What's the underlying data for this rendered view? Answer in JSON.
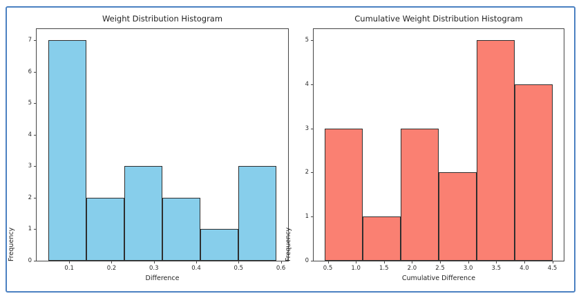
{
  "figure": {
    "background_color": "#ffffff",
    "border_color": "#4a80c1",
    "spine_color": "#444444",
    "text_color": "#1f1f1f"
  },
  "chart_data": [
    {
      "type": "bar",
      "subtype": "histogram",
      "title": "Weight Distribution Histogram",
      "xlabel": "Difference",
      "ylabel": "Frequency",
      "bar_color": "#87ceeb",
      "bar_edge_color": "#2e2e2e",
      "bin_edges": [
        0.05,
        0.14,
        0.23,
        0.32,
        0.41,
        0.5,
        0.59
      ],
      "values": [
        7,
        2,
        3,
        2,
        1,
        3
      ],
      "xlim": [
        0.023,
        0.617
      ],
      "ylim": [
        0,
        7.35
      ],
      "x_ticks": [
        0.1,
        0.2,
        0.3,
        0.4,
        0.5,
        0.6
      ],
      "x_tick_labels": [
        "0.1",
        "0.2",
        "0.3",
        "0.4",
        "0.5",
        "0.6"
      ],
      "y_ticks": [
        0,
        1,
        2,
        3,
        4,
        5,
        6,
        7
      ],
      "y_tick_labels": [
        "0",
        "1",
        "2",
        "3",
        "4",
        "5",
        "6",
        "7"
      ],
      "grid": false,
      "legend": null
    },
    {
      "type": "bar",
      "subtype": "histogram",
      "title": "Cumulative Weight Distribution Histogram",
      "xlabel": "Cumulative Difference",
      "ylabel": "Frequency",
      "bar_color": "#fa8072",
      "bar_edge_color": "#2e2e2e",
      "bin_edges": [
        0.45,
        1.125,
        1.8,
        2.475,
        3.15,
        3.825,
        4.5
      ],
      "values": [
        3,
        1,
        3,
        2,
        5,
        4
      ],
      "xlim": [
        0.2475,
        4.7025
      ],
      "ylim": [
        0,
        5.25
      ],
      "x_ticks": [
        0.5,
        1.0,
        1.5,
        2.0,
        2.5,
        3.0,
        3.5,
        4.0,
        4.5
      ],
      "x_tick_labels": [
        "0.5",
        "1.0",
        "1.5",
        "2.0",
        "2.5",
        "3.0",
        "3.5",
        "4.0",
        "4.5"
      ],
      "y_ticks": [
        0,
        1,
        2,
        3,
        4,
        5
      ],
      "y_tick_labels": [
        "0",
        "1",
        "2",
        "3",
        "4",
        "5"
      ],
      "grid": false,
      "legend": null
    }
  ]
}
